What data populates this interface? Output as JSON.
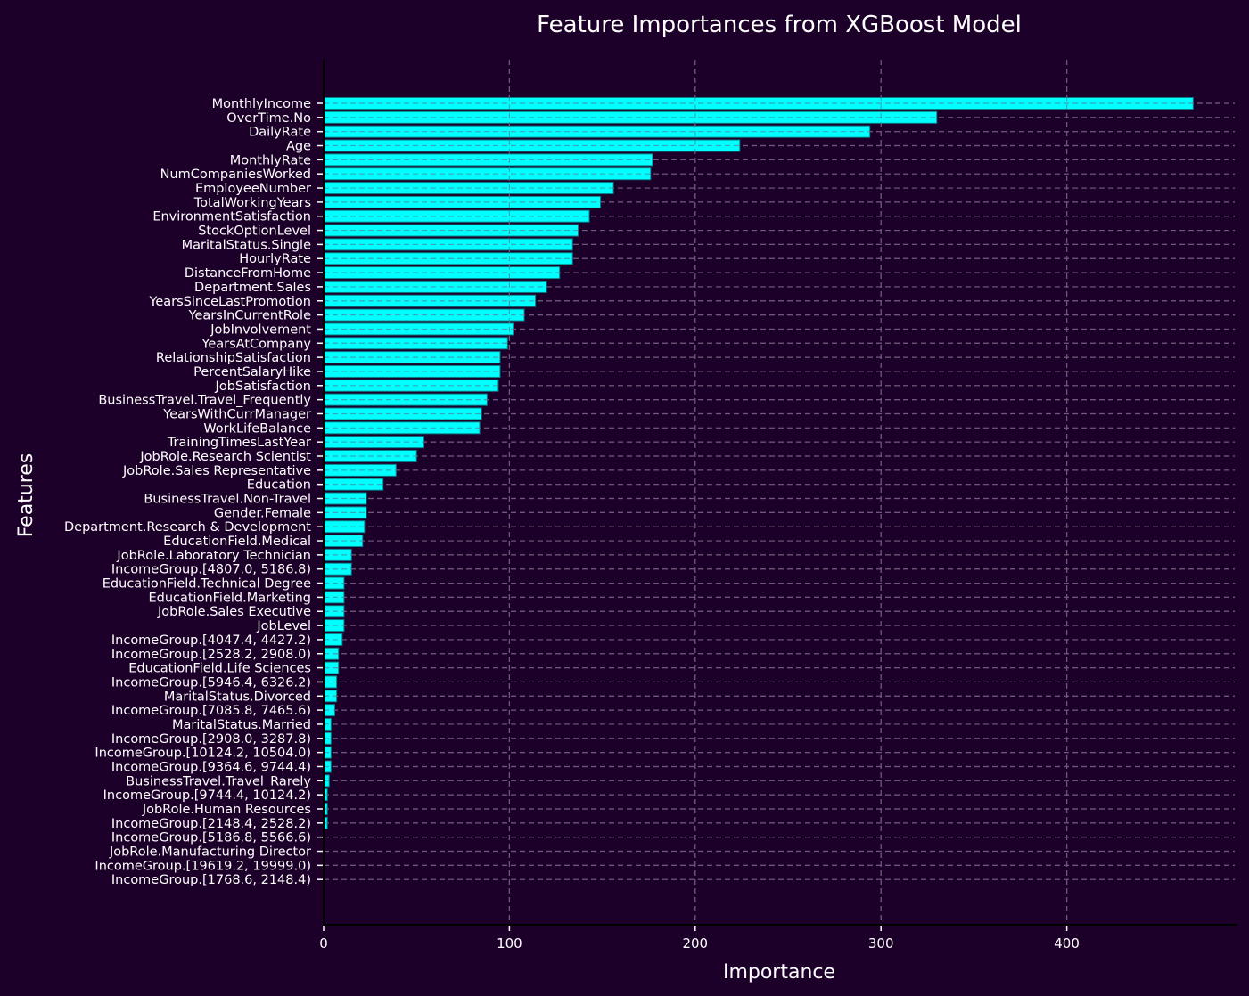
{
  "chart_data": {
    "type": "bar",
    "orientation": "horizontal",
    "title": "Feature Importances from XGBoost Model",
    "xlabel": "Importance",
    "ylabel": "Features",
    "xlim": [
      0,
      490
    ],
    "xticks": [
      0,
      100,
      200,
      300,
      400
    ],
    "grid": true,
    "legend": null,
    "colors": {
      "background": "#1c0029",
      "bar": "#00ffff",
      "grid": "#6e5a78",
      "text": "#ffffff"
    },
    "categories": [
      "MonthlyIncome",
      "OverTime.No",
      "DailyRate",
      "Age",
      "MonthlyRate",
      "NumCompaniesWorked",
      "EmployeeNumber",
      "TotalWorkingYears",
      "EnvironmentSatisfaction",
      "StockOptionLevel",
      "MaritalStatus.Single",
      "HourlyRate",
      "DistanceFromHome",
      "Department.Sales",
      "YearsSinceLastPromotion",
      "YearsInCurrentRole",
      "JobInvolvement",
      "YearsAtCompany",
      "RelationshipSatisfaction",
      "PercentSalaryHike",
      "JobSatisfaction",
      "BusinessTravel.Travel_Frequently",
      "YearsWithCurrManager",
      "WorkLifeBalance",
      "TrainingTimesLastYear",
      "JobRole.Research Scientist",
      "JobRole.Sales Representative",
      "Education",
      "BusinessTravel.Non-Travel",
      "Gender.Female",
      "Department.Research & Development",
      "EducationField.Medical",
      "JobRole.Laboratory Technician",
      "IncomeGroup.[4807.0, 5186.8)",
      "EducationField.Technical Degree",
      "EducationField.Marketing",
      "JobRole.Sales Executive",
      "JobLevel",
      "IncomeGroup.[4047.4, 4427.2)",
      "IncomeGroup.[2528.2, 2908.0)",
      "EducationField.Life Sciences",
      "IncomeGroup.[5946.4, 6326.2)",
      "MaritalStatus.Divorced",
      "IncomeGroup.[7085.8, 7465.6)",
      "MaritalStatus.Married",
      "IncomeGroup.[2908.0, 3287.8)",
      "IncomeGroup.[10124.2, 10504.0)",
      "IncomeGroup.[9364.6, 9744.4)",
      "BusinessTravel.Travel_Rarely",
      "IncomeGroup.[9744.4, 10124.2)",
      "JobRole.Human Resources",
      "IncomeGroup.[2148.4, 2528.2)",
      "IncomeGroup.[5186.8, 5566.6)",
      "JobRole.Manufacturing Director",
      "IncomeGroup.[19619.2, 19999.0)",
      "IncomeGroup.[1768.6, 2148.4)"
    ],
    "values": [
      468,
      330,
      294,
      224,
      177,
      176,
      156,
      149,
      143,
      137,
      134,
      134,
      127,
      120,
      114,
      108,
      102,
      99,
      95,
      95,
      94,
      88,
      85,
      84,
      54,
      50,
      39,
      32,
      23,
      23,
      22,
      21,
      15,
      15,
      11,
      11,
      11,
      11,
      10,
      8,
      8,
      7,
      7,
      6,
      4,
      4,
      4,
      4,
      3,
      2,
      2,
      2,
      0,
      0,
      0,
      0
    ]
  }
}
